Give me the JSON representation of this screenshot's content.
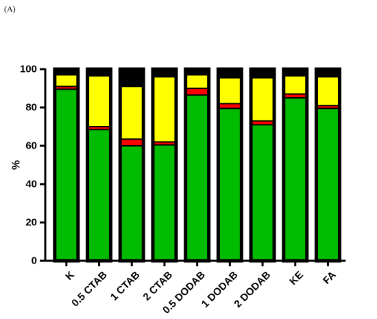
{
  "panel_label": "(A)",
  "chart_data": {
    "type": "bar",
    "stacked": true,
    "title": "",
    "xlabel": "",
    "ylabel": "%",
    "ylim": [
      0,
      100
    ],
    "yticks": [
      0,
      20,
      40,
      60,
      80,
      100
    ],
    "grid": false,
    "legend": "none",
    "categories": [
      "K",
      "0.5 CTAB",
      "1 CTAB",
      "2 CTAB",
      "0.5 DODAB",
      "1 DODAB",
      "2 DODAB",
      "KE",
      "FA"
    ],
    "series": [
      {
        "color": "#00bb00",
        "values": [
          89.5,
          68.5,
          60,
          60.5,
          86.5,
          79.5,
          71,
          85,
          79.5
        ]
      },
      {
        "color": "#ff0000",
        "values": [
          1.5,
          1.5,
          3.5,
          1.5,
          3.5,
          2.5,
          2,
          2,
          1.5
        ]
      },
      {
        "color": "#ffff00",
        "values": [
          6,
          26.5,
          27.5,
          34,
          7,
          13.5,
          22.5,
          9.5,
          15
        ]
      },
      {
        "color": "#000000",
        "values": [
          3,
          3.5,
          9,
          4,
          3,
          4.5,
          4.5,
          3.5,
          4
        ]
      }
    ]
  }
}
